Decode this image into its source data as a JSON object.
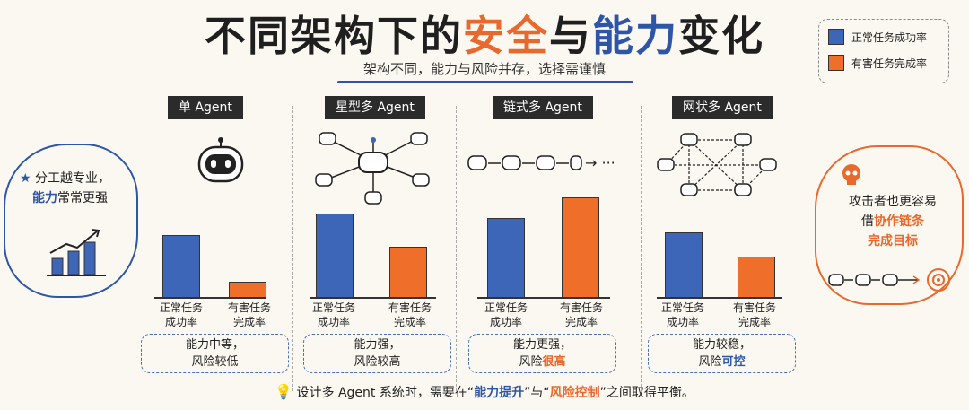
{
  "title": {
    "part1": "不同架构下的",
    "part2": "安全",
    "part3": "与",
    "part4": "能力",
    "part5": "变化"
  },
  "subtitle": "架构不同，能力与风险并存，选择需谨慎",
  "legend": [
    {
      "label": "正常任务成功率",
      "color": "#3e66b8"
    },
    {
      "label": "有害任务完成率",
      "color": "#ef6e2a"
    }
  ],
  "left_note": {
    "line1": "分工越专业，",
    "line2_a": "能力",
    "line2_b": "常常更强"
  },
  "right_note": {
    "line1": "攻击者也更容易",
    "line2_a": "借",
    "line2_b": "协作链条",
    "line3": "完成目标"
  },
  "footer": {
    "a": "设计多 Agent 系统时，需要在“",
    "b": "能力提升",
    "c": "”与“",
    "d": "风险控制",
    "e": "”之间取得平衡。"
  },
  "chain_ellipsis": "→ ···",
  "chart_data": {
    "type": "bar",
    "series_names": [
      "正常任务成功率",
      "有害任务完成率"
    ],
    "panels": [
      {
        "title": "单 Agent",
        "values": [
          0.59,
          0.15
        ],
        "xlabels": [
          "正常任务\n成功率",
          "有害任务\n完成率"
        ],
        "box_line1": "能力中等，",
        "box_line2_a": "风险较低",
        "box_line2_b": ""
      },
      {
        "title": "星型多 Agent",
        "values": [
          0.8,
          0.48
        ],
        "xlabels": [
          "正常任务\n成功率",
          "有害任务\n完成率"
        ],
        "box_line1": "能力强，",
        "box_line2_a": "风险较高",
        "box_line2_b": ""
      },
      {
        "title": "链式多 Agent",
        "values": [
          0.75,
          0.95
        ],
        "xlabels": [
          "正常任务\n成功率",
          "有害任务\n完成率"
        ],
        "box_line1": "能力更强，",
        "box_line2_a": "风险",
        "box_line2_b": "很高",
        "accent": "c1"
      },
      {
        "title": "网状多 Agent",
        "values": [
          0.62,
          0.39
        ],
        "xlabels": [
          "正常任务\n成功率",
          "有害任务\n完成率"
        ],
        "box_line1": "能力较稳，",
        "box_line2_a": "风险",
        "box_line2_b": "可控",
        "accent": "c2"
      }
    ]
  }
}
